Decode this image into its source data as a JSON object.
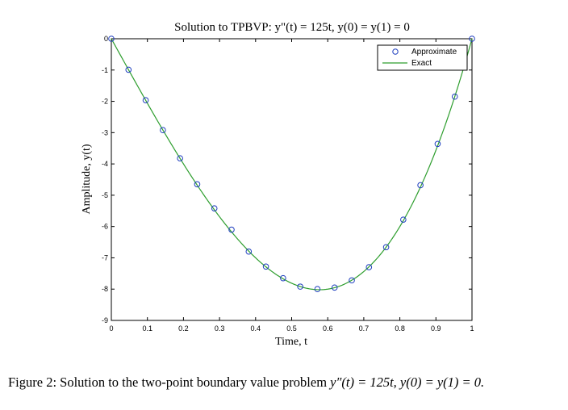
{
  "chart_data": {
    "type": "line",
    "title": "Solution to TPBVP: y\"(t) = 125t, y(0) = y(1) = 0",
    "xlabel": "Time, t",
    "ylabel": "Amplitude, y(t)",
    "xlim": [
      0,
      1
    ],
    "ylim": [
      -9,
      0
    ],
    "xticks": [
      "0",
      "0.1",
      "0.2",
      "0.3",
      "0.4",
      "0.5",
      "0.6",
      "0.7",
      "0.8",
      "0.9",
      "1"
    ],
    "yticks": [
      "0",
      "-1",
      "-2",
      "-3",
      "-4",
      "-5",
      "-6",
      "-7",
      "-8",
      "-9"
    ],
    "grid": false,
    "legend_position": "top-right",
    "series": [
      {
        "name": "Approximate",
        "marker": "circle",
        "color": "#1f3fbf",
        "x": [
          0,
          0.0476,
          0.0952,
          0.1429,
          0.1905,
          0.2381,
          0.2857,
          0.3333,
          0.381,
          0.4286,
          0.4762,
          0.5238,
          0.5714,
          0.619,
          0.6667,
          0.7143,
          0.7619,
          0.8095,
          0.8571,
          0.9048,
          0.9524,
          1
        ],
        "y": [
          0,
          -0.99,
          -1.965,
          -2.92,
          -3.82,
          -4.65,
          -5.42,
          -6.1,
          -6.8,
          -7.28,
          -7.65,
          -7.92,
          -8.0,
          -7.95,
          -7.72,
          -7.3,
          -6.66,
          -5.78,
          -4.68,
          -3.36,
          -1.85,
          0
        ]
      },
      {
        "name": "Exact",
        "line": "solid",
        "color": "#2e9e2e",
        "function": "y = (125/6)(t^3 - t)"
      }
    ]
  },
  "caption": {
    "prefix": "Figure 2: Solution to the two-point boundary value problem ",
    "equation": "y″(t) = 125t, y(0) = y(1) = 0."
  }
}
